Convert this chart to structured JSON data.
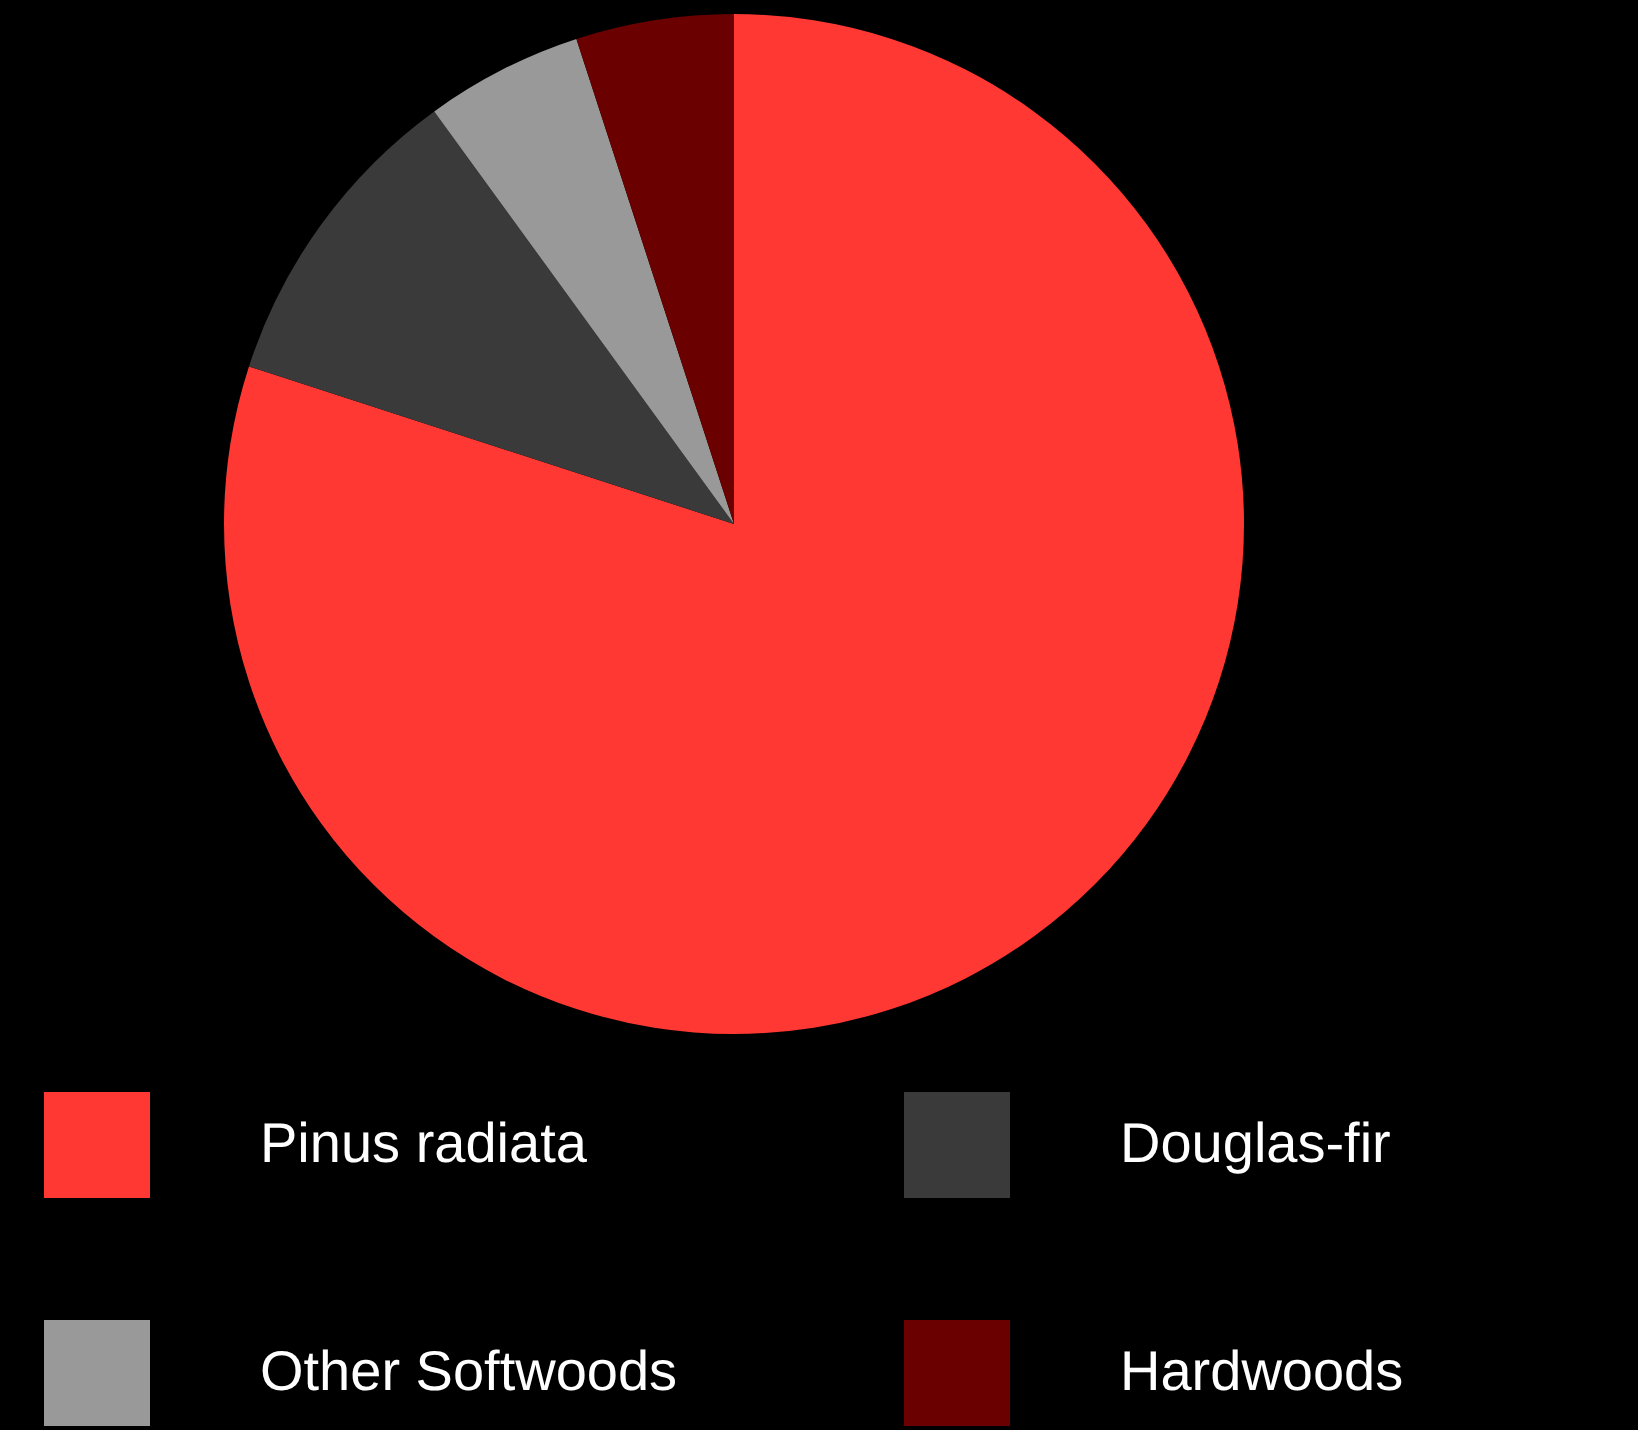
{
  "chart_data": {
    "type": "pie",
    "categories": [
      "Pinus radiata",
      "Douglas-fir",
      "Other Softwoods",
      "Hardwoods"
    ],
    "values": [
      80,
      10,
      5,
      5
    ],
    "colors": [
      "#ff3833",
      "#3a3a3a",
      "#999999",
      "#6b0000"
    ],
    "legend": "bottom"
  }
}
